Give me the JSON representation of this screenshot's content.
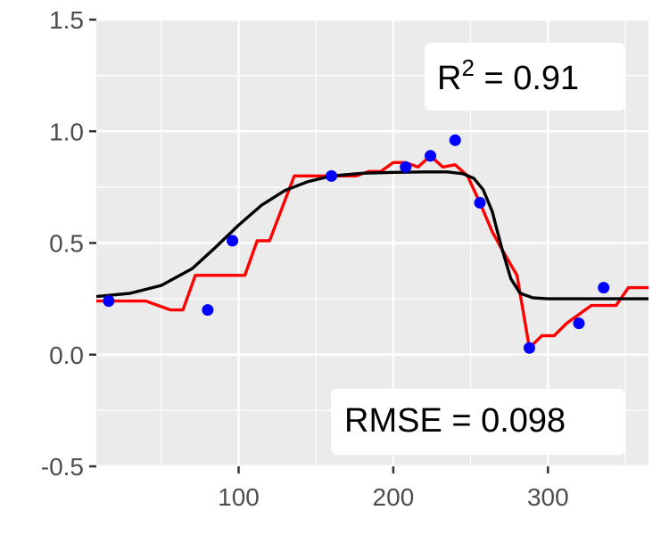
{
  "chart_data": {
    "type": "line",
    "title": "",
    "xlabel": "",
    "ylabel": "",
    "xlim": [
      8,
      365
    ],
    "ylim": [
      -0.5,
      1.5
    ],
    "x_ticks": [
      100,
      200,
      300
    ],
    "x_tick_labels": [
      "100",
      "200",
      "300"
    ],
    "y_ticks": [
      -0.5,
      0.0,
      0.5,
      1.0,
      1.5
    ],
    "y_tick_labels": [
      "-0.5",
      "0.0",
      "0.5",
      "1.0",
      "1.5"
    ],
    "grid": true,
    "background_color": "#ebebeb",
    "grid_color": "#ffffff",
    "series": [
      {
        "type": "scatter",
        "color": "#0000ff",
        "points": [
          {
            "x": 16,
            "y": 0.24
          },
          {
            "x": 80,
            "y": 0.2
          },
          {
            "x": 96,
            "y": 0.51
          },
          {
            "x": 160,
            "y": 0.8
          },
          {
            "x": 208,
            "y": 0.84
          },
          {
            "x": 224,
            "y": 0.89
          },
          {
            "x": 240,
            "y": 0.96
          },
          {
            "x": 256,
            "y": 0.68
          },
          {
            "x": 288,
            "y": 0.03
          },
          {
            "x": 320,
            "y": 0.14
          },
          {
            "x": 336,
            "y": 0.3
          }
        ]
      },
      {
        "type": "line",
        "color": "#ff0000",
        "points": [
          {
            "x": 8,
            "y": 0.24
          },
          {
            "x": 40,
            "y": 0.24
          },
          {
            "x": 56,
            "y": 0.2
          },
          {
            "x": 64,
            "y": 0.2
          },
          {
            "x": 72,
            "y": 0.355
          },
          {
            "x": 104,
            "y": 0.355
          },
          {
            "x": 112,
            "y": 0.51
          },
          {
            "x": 120,
            "y": 0.51
          },
          {
            "x": 136,
            "y": 0.8
          },
          {
            "x": 176,
            "y": 0.8
          },
          {
            "x": 184,
            "y": 0.82
          },
          {
            "x": 192,
            "y": 0.82
          },
          {
            "x": 200,
            "y": 0.86
          },
          {
            "x": 208,
            "y": 0.86
          },
          {
            "x": 216,
            "y": 0.84
          },
          {
            "x": 224,
            "y": 0.89
          },
          {
            "x": 232,
            "y": 0.84
          },
          {
            "x": 240,
            "y": 0.85
          },
          {
            "x": 248,
            "y": 0.8
          },
          {
            "x": 256,
            "y": 0.68
          },
          {
            "x": 264,
            "y": 0.55
          },
          {
            "x": 272,
            "y": 0.45
          },
          {
            "x": 280,
            "y": 0.355
          },
          {
            "x": 288,
            "y": 0.03
          },
          {
            "x": 296,
            "y": 0.085
          },
          {
            "x": 304,
            "y": 0.085
          },
          {
            "x": 312,
            "y": 0.14
          },
          {
            "x": 328,
            "y": 0.22
          },
          {
            "x": 344,
            "y": 0.22
          },
          {
            "x": 352,
            "y": 0.3
          },
          {
            "x": 365,
            "y": 0.3
          }
        ]
      },
      {
        "type": "line",
        "color": "#000000",
        "points": [
          {
            "x": 8,
            "y": 0.26
          },
          {
            "x": 30,
            "y": 0.275
          },
          {
            "x": 50,
            "y": 0.31
          },
          {
            "x": 70,
            "y": 0.385
          },
          {
            "x": 85,
            "y": 0.48
          },
          {
            "x": 100,
            "y": 0.58
          },
          {
            "x": 115,
            "y": 0.67
          },
          {
            "x": 130,
            "y": 0.735
          },
          {
            "x": 145,
            "y": 0.775
          },
          {
            "x": 160,
            "y": 0.8
          },
          {
            "x": 180,
            "y": 0.812
          },
          {
            "x": 200,
            "y": 0.816
          },
          {
            "x": 220,
            "y": 0.818
          },
          {
            "x": 235,
            "y": 0.818
          },
          {
            "x": 245,
            "y": 0.81
          },
          {
            "x": 252,
            "y": 0.79
          },
          {
            "x": 258,
            "y": 0.74
          },
          {
            "x": 264,
            "y": 0.64
          },
          {
            "x": 270,
            "y": 0.48
          },
          {
            "x": 276,
            "y": 0.34
          },
          {
            "x": 282,
            "y": 0.275
          },
          {
            "x": 290,
            "y": 0.255
          },
          {
            "x": 300,
            "y": 0.25
          },
          {
            "x": 320,
            "y": 0.25
          },
          {
            "x": 365,
            "y": 0.25
          }
        ]
      }
    ],
    "annotations": [
      {
        "position": "top-right",
        "base": "R",
        "superscript": "2",
        "text": " = 0.91"
      },
      {
        "position": "bottom-right",
        "text": "RMSE = 0.098"
      }
    ]
  }
}
